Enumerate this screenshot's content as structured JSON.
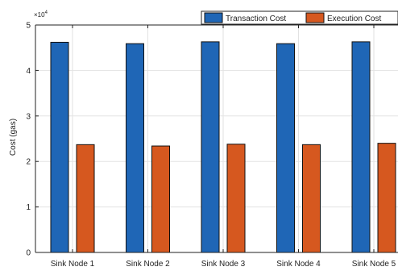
{
  "chart_data": {
    "type": "bar",
    "categories": [
      "Sink Node 1",
      "Sink Node 2",
      "Sink Node 3",
      "Sink Node 4",
      "Sink Node 5"
    ],
    "series": [
      {
        "name": "Transaction Cost",
        "values": [
          46200,
          45900,
          46300,
          45900,
          46300
        ],
        "color": "#1f66b6"
      },
      {
        "name": "Execution Cost",
        "values": [
          23700,
          23400,
          23800,
          23700,
          24000
        ],
        "color": "#d6581f"
      }
    ],
    "title": "",
    "xlabel": "",
    "ylabel": "Cost (gas)",
    "ylim": [
      0,
      50000
    ],
    "yticks": [
      0,
      1,
      2,
      3,
      4,
      5
    ],
    "y_exponent_label": "×10",
    "y_exponent_power": "4",
    "grid": true,
    "legend_position": "top-right"
  }
}
